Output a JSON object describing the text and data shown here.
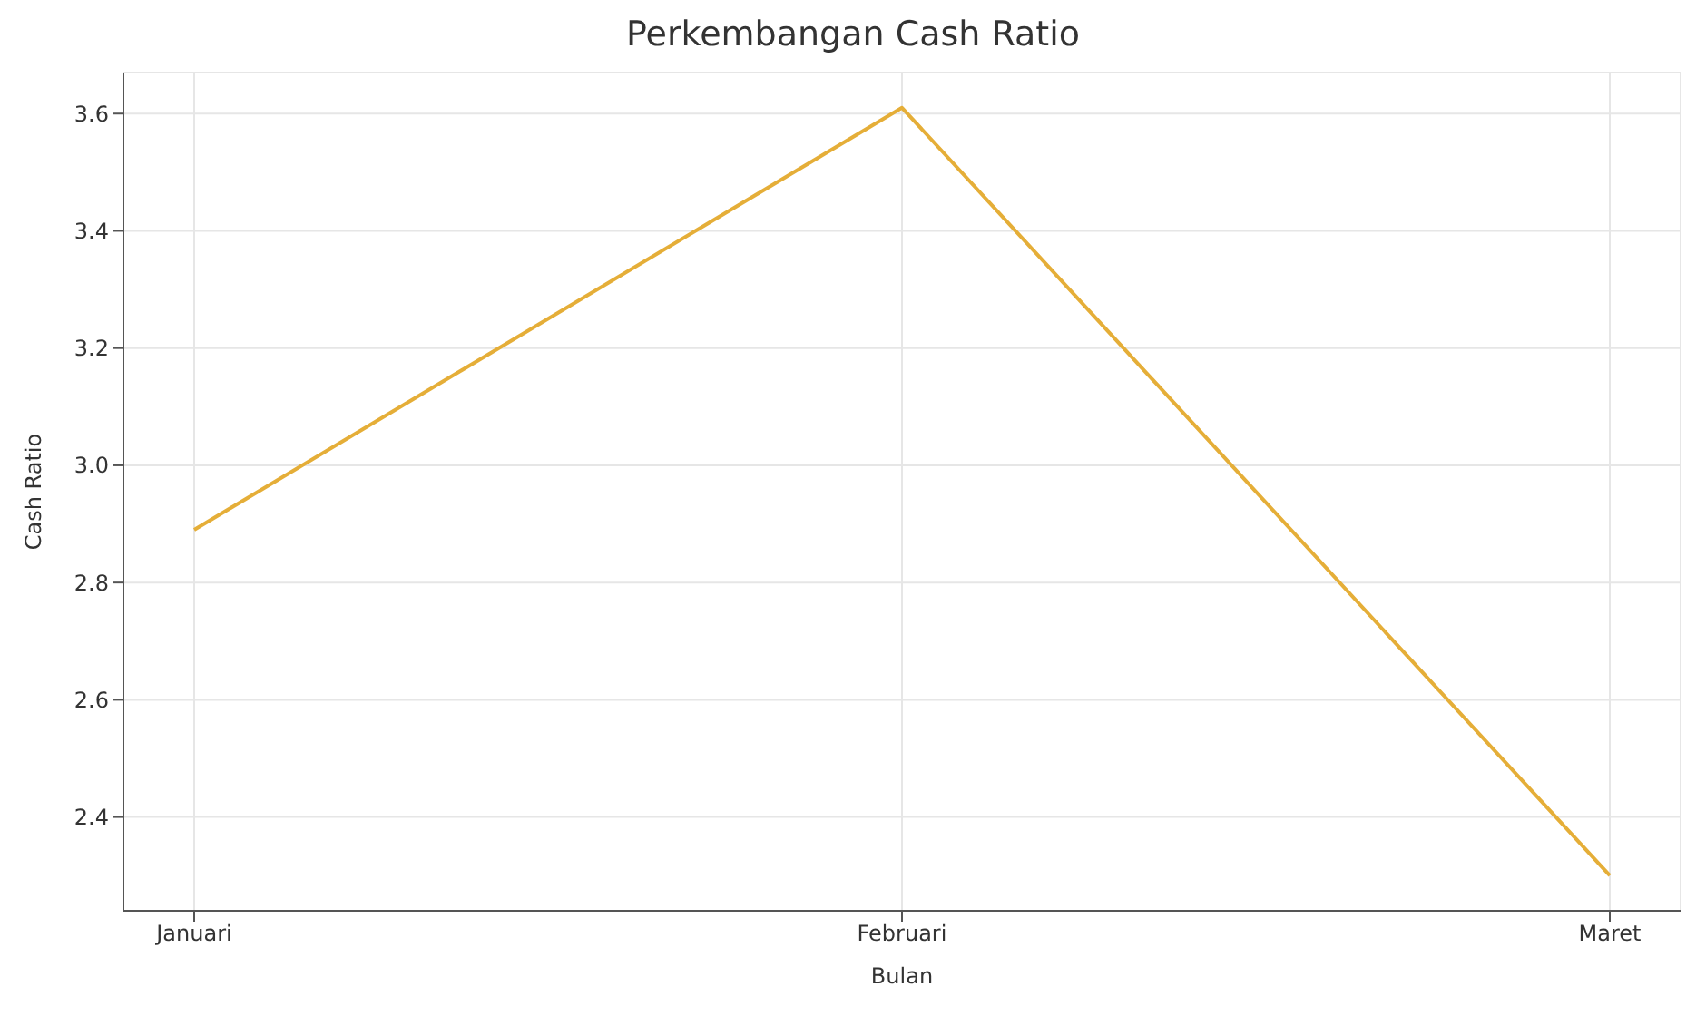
{
  "chart_data": {
    "type": "line",
    "title": "Perkembangan Cash Ratio",
    "xlabel": "Bulan",
    "ylabel": "Cash Ratio",
    "categories": [
      "Januari",
      "Februari",
      "Maret"
    ],
    "series": [
      {
        "color": "#e5ae38",
        "values": [
          2.89,
          3.61,
          2.3
        ]
      }
    ],
    "ylim": [
      2.24,
      3.67
    ],
    "yticks": [
      2.4,
      2.6,
      2.8,
      {
        "value": 3,
        "label": "3.0"
      },
      3.2,
      3.4,
      3.6
    ],
    "grid": true,
    "marker": "none",
    "line_style": "solid"
  }
}
